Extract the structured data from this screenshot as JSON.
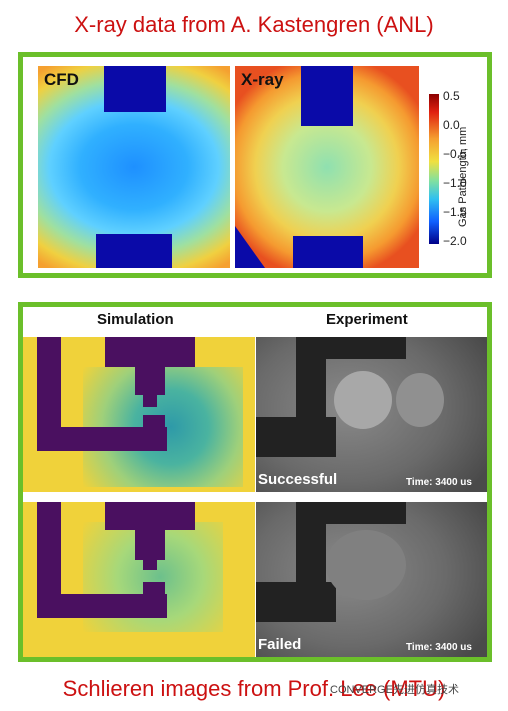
{
  "top_title": "X-ray data from A. Kastengren (ANL)",
  "bottom_title": "Schlieren images from Prof. Lee (MTU)",
  "xray": {
    "cfd_label": "CFD",
    "xray_label": "X-ray",
    "colorbar": {
      "ticks": [
        "0.5",
        "0.0",
        "−0.5",
        "−1.0",
        "−1.5",
        "−2.0"
      ],
      "label": "Gas Pathlength, mm"
    }
  },
  "schlieren": {
    "simulation_header": "Simulation",
    "experiment_header": "Experiment",
    "rows": [
      {
        "caption": "Successful",
        "time": "Time: 3400 us"
      },
      {
        "caption": "Failed",
        "time": "Time: 3400 us"
      }
    ]
  },
  "watermark": "CONVERGE先进仿真技术"
}
